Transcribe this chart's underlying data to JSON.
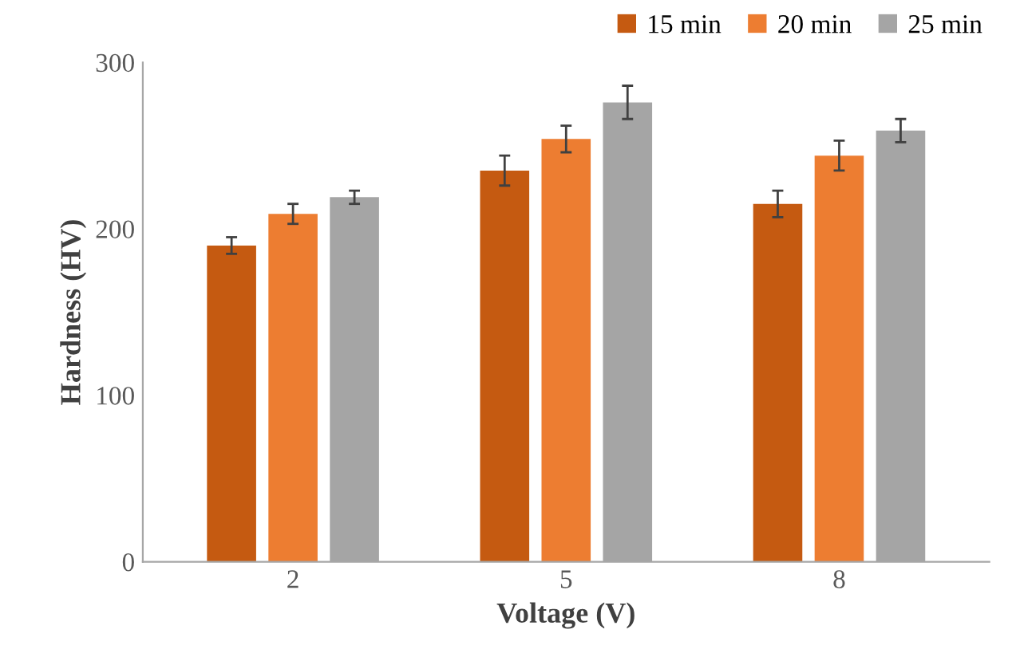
{
  "chart_data": {
    "type": "bar",
    "xlabel": "Voltage (V)",
    "ylabel": "Hardness (HV)",
    "categories": [
      "2",
      "5",
      "8"
    ],
    "series": [
      {
        "name": "15 min",
        "color": "#c55a11",
        "values": [
          190,
          235,
          215
        ],
        "errors": [
          5,
          9,
          8
        ]
      },
      {
        "name": "20 min",
        "color": "#ed7d31",
        "values": [
          209,
          254,
          244
        ],
        "errors": [
          6,
          8,
          9
        ]
      },
      {
        "name": "25 min",
        "color": "#a5a5a5",
        "values": [
          219,
          276,
          259
        ],
        "errors": [
          4,
          10,
          7
        ]
      }
    ],
    "ylim": [
      0,
      300
    ],
    "yticks": [
      0,
      100,
      200,
      300
    ],
    "grid": false,
    "legend": "top right"
  }
}
